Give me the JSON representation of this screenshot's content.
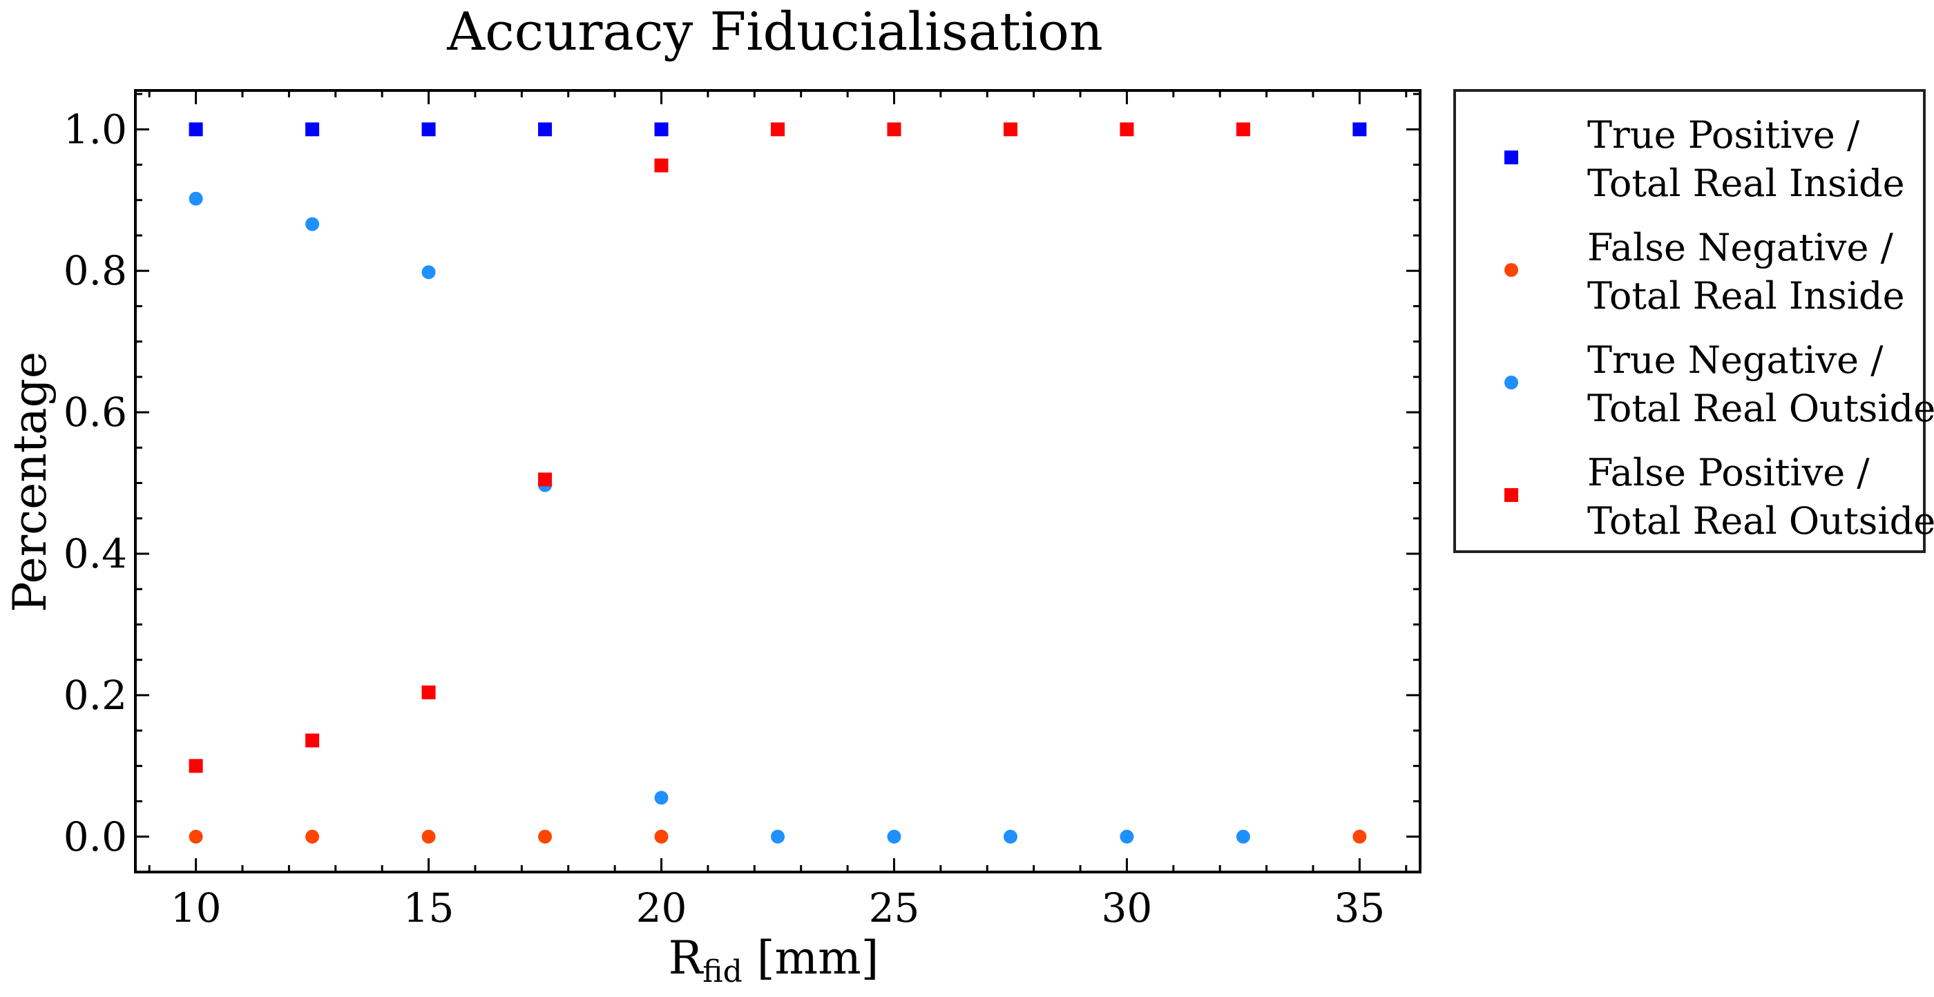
{
  "chart_data": {
    "type": "scatter",
    "title": "Accuracy Fiducialisation",
    "xlabel": {
      "main": "R",
      "sub": "fid",
      "suffix": " [mm]"
    },
    "ylabel": "Percentage",
    "xlim": [
      8.7,
      36.3
    ],
    "ylim": [
      -0.05,
      1.055
    ],
    "xticks": [
      10,
      15,
      20,
      25,
      30,
      35
    ],
    "xtick_labels": [
      "10",
      "15",
      "20",
      "25",
      "30",
      "35"
    ],
    "yticks": [
      0.0,
      0.2,
      0.4,
      0.6,
      0.8,
      1.0
    ],
    "ytick_labels": [
      "0.0",
      "0.2",
      "0.4",
      "0.6",
      "0.8",
      "1.0"
    ],
    "x_minor_step": 1,
    "y_minor_step": 0.05,
    "grid": false,
    "legend_position": "outside-right",
    "x": [
      10,
      12.5,
      15,
      17.5,
      20,
      22.5,
      25,
      27.5,
      30,
      32.5,
      35
    ],
    "series": [
      {
        "name_lines": [
          "True Positive /",
          "Total Real Inside"
        ],
        "marker": "square",
        "color": "#0000ff",
        "values": [
          1.0,
          1.0,
          1.0,
          1.0,
          1.0,
          null,
          null,
          null,
          null,
          null,
          1.0
        ]
      },
      {
        "name_lines": [
          "False Negative /",
          "Total Real Inside"
        ],
        "marker": "circle",
        "color": "#ff4500",
        "values": [
          0.0,
          0.0,
          0.0,
          0.0,
          0.0,
          null,
          null,
          null,
          null,
          null,
          0.0
        ]
      },
      {
        "name_lines": [
          "True Negative /",
          "Total Real Outside"
        ],
        "marker": "circle",
        "color": "#1e90ff",
        "values": [
          0.902,
          0.866,
          0.798,
          0.497,
          0.055,
          0.0,
          0.0,
          0.0,
          0.0,
          0.0,
          null
        ]
      },
      {
        "name_lines": [
          "False Positive /",
          "Total Real Outside"
        ],
        "marker": "square",
        "color": "#ff0000",
        "values": [
          0.1,
          0.136,
          0.204,
          0.505,
          0.949,
          1.0,
          1.0,
          1.0,
          1.0,
          1.0,
          null
        ]
      }
    ]
  }
}
